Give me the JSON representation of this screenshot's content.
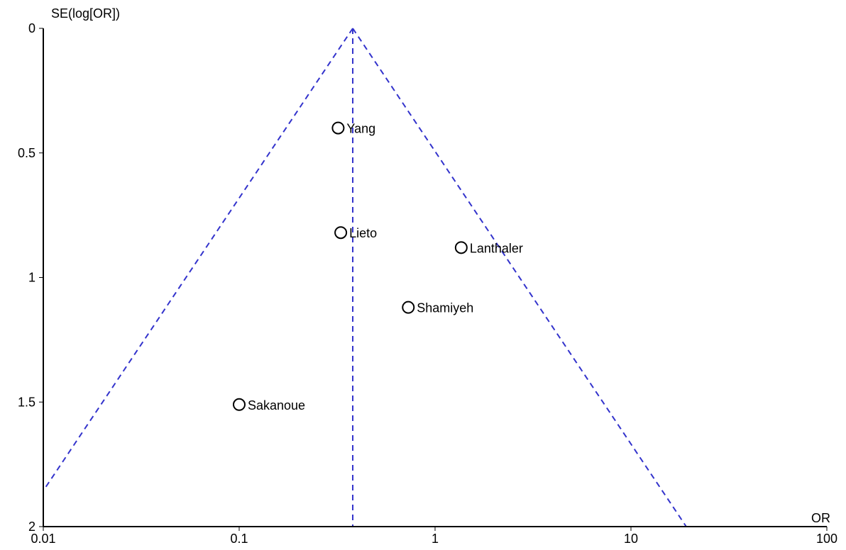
{
  "chart_data": {
    "type": "scatter",
    "title": "",
    "xlabel": "OR",
    "ylabel": "SE(log[OR])",
    "x_scale": "log",
    "xlim": [
      0.01,
      100
    ],
    "ylim": [
      0,
      2
    ],
    "y_inverted": true,
    "x_ticks": [
      0.01,
      0.1,
      1,
      10,
      100
    ],
    "x_tick_labels": [
      "0.01",
      "0.1",
      "1",
      "10",
      "100"
    ],
    "y_ticks": [
      0,
      0.5,
      1,
      1.5,
      2
    ],
    "y_tick_labels": [
      "0",
      "0.5",
      "1",
      "1.5",
      "2"
    ],
    "grid": false,
    "pooled_or": 0.38,
    "funnel_color": "#3333cc",
    "points": [
      {
        "label": "Yang",
        "or": 0.32,
        "se": 0.4
      },
      {
        "label": "Lieto",
        "or": 0.33,
        "se": 0.82
      },
      {
        "label": "Lanthaler",
        "or": 1.36,
        "se": 0.88
      },
      {
        "label": "Shamiyeh",
        "or": 0.73,
        "se": 1.12
      },
      {
        "label": "Sakanoue",
        "or": 0.1,
        "se": 1.51
      }
    ]
  }
}
